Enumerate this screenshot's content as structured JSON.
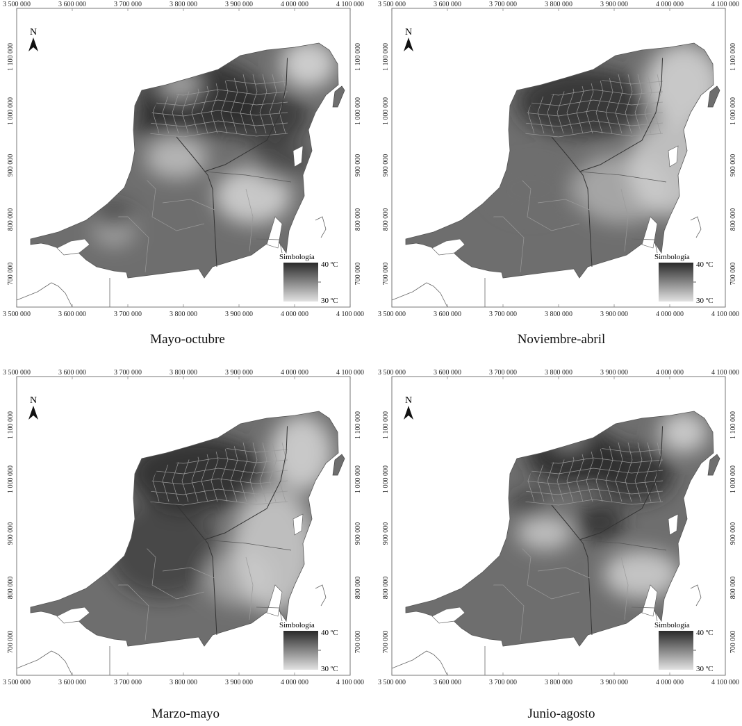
{
  "maps": [
    {
      "caption": "Mayo-octubre",
      "pattern": "may-oct",
      "x_ticks": [
        "3 500 000",
        "3 600 000",
        "3 700 000",
        "3 800 000",
        "3 900 000",
        "4 000 000",
        "4 100 000"
      ],
      "y_ticks": [
        "1 100 000",
        "1 000 000",
        "900 000",
        "800 000",
        "700 000"
      ],
      "north_label": "N",
      "legend": {
        "title": "Simbología",
        "max": "40 ºC",
        "min": "30 ºC"
      }
    },
    {
      "caption": "Noviembre-abril",
      "pattern": "nov-apr",
      "x_ticks": [
        "3 500 000",
        "3 600 000",
        "3 700 000",
        "3 800 000",
        "3 900 000",
        "4 000 000",
        "4 100 000"
      ],
      "y_ticks": [
        "1 100 000",
        "1 000 000",
        "900 000",
        "800 000",
        "700 000"
      ],
      "north_label": "N",
      "legend": {
        "title": "Simbología",
        "max": "40 ºC",
        "min": "30 ºC"
      }
    },
    {
      "caption": "Marzo-mayo",
      "pattern": "mar-may",
      "x_ticks": [
        "3 500 000",
        "3 600 000",
        "3 700 000",
        "3 800 000",
        "3 900 000",
        "4 000 000",
        "4 100 000"
      ],
      "y_ticks": [
        "1 100 000",
        "1 000 000",
        "900 000",
        "800 000",
        "700 000"
      ],
      "north_label": "N",
      "legend": {
        "title": "Simbología",
        "max": "40 ºC",
        "min": "30 ºC"
      }
    },
    {
      "caption": "Junio-agosto",
      "pattern": "jun-aug",
      "x_ticks": [
        "3 500 000",
        "3 600 000",
        "3 700 000",
        "3 800 000",
        "3 900 000",
        "4 000 000",
        "4 100 000"
      ],
      "y_ticks": [
        "1 100 000",
        "1 000 000",
        "900 000",
        "800 000",
        "700 000"
      ],
      "north_label": "N",
      "legend": {
        "title": "Simbología",
        "max": "40 ºC",
        "min": "30 ºC"
      }
    }
  ],
  "colors": {
    "dark": "#2a2a2a",
    "mid": "#6e6e6e",
    "light": "#d2d2d2",
    "border": "#9a9a9a"
  }
}
